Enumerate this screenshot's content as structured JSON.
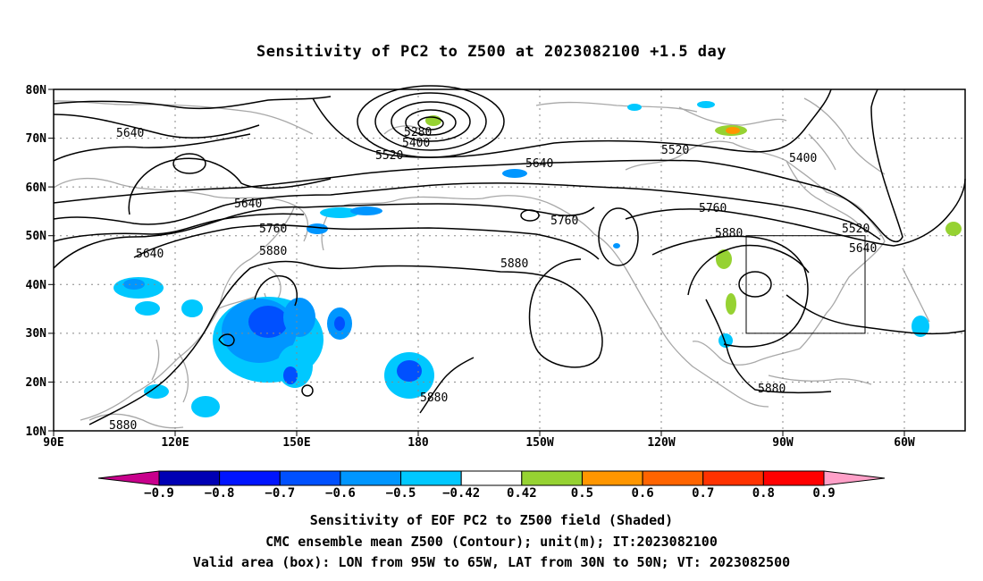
{
  "title": "Sensitivity of PC2 to Z500 at 2023082100 +1.5 day",
  "map": {
    "lat_ticks": [
      "80N",
      "70N",
      "60N",
      "50N",
      "40N",
      "30N",
      "20N",
      "10N"
    ],
    "lon_ticks": [
      "90E",
      "120E",
      "150E",
      "180",
      "150W",
      "120W",
      "90W",
      "60W"
    ],
    "contour_labels": [
      {
        "id": "c1",
        "text": "5640"
      },
      {
        "id": "c2",
        "text": "5280"
      },
      {
        "id": "c3",
        "text": "5400"
      },
      {
        "id": "c4",
        "text": "5520"
      },
      {
        "id": "c5",
        "text": "5640"
      },
      {
        "id": "c6",
        "text": "5520"
      },
      {
        "id": "c7",
        "text": "5400"
      },
      {
        "id": "c8",
        "text": "5640"
      },
      {
        "id": "c9",
        "text": "5760"
      },
      {
        "id": "c10",
        "text": "5760"
      },
      {
        "id": "c11",
        "text": "5760"
      },
      {
        "id": "c12",
        "text": "5640"
      },
      {
        "id": "c13",
        "text": "5880"
      },
      {
        "id": "c14",
        "text": "5880"
      },
      {
        "id": "c15",
        "text": "5880"
      },
      {
        "id": "c16",
        "text": "5520"
      },
      {
        "id": "c17",
        "text": "5640"
      },
      {
        "id": "c18",
        "text": "5880"
      },
      {
        "id": "c19",
        "text": "5880"
      },
      {
        "id": "c20",
        "text": "5880"
      }
    ]
  },
  "colorbar": {
    "labels": [
      "-0.9",
      "-0.8",
      "-0.7",
      "-0.6",
      "-0.5",
      "-0.42",
      "0.42",
      "0.5",
      "0.6",
      "0.7",
      "0.8",
      "0.9"
    ],
    "colors": [
      "#0000b4",
      "#0014ff",
      "#0050ff",
      "#0096ff",
      "#00c8ff",
      "#ffffff",
      "#96d232",
      "#ff9600",
      "#ff6400",
      "#ff3200",
      "#ff0000"
    ],
    "low_end_color": "#c8008c",
    "high_end_color": "#ffa0c8"
  },
  "captions": {
    "line1": "Sensitivity of EOF PC2 to Z500 field (Shaded)",
    "line2": "CMC ensemble mean Z500 (Contour); unit(m); IT:2023082100",
    "line3": "Valid area (box): LON from 95W to 65W, LAT from 30N to 50N; VT: 2023082500"
  }
}
